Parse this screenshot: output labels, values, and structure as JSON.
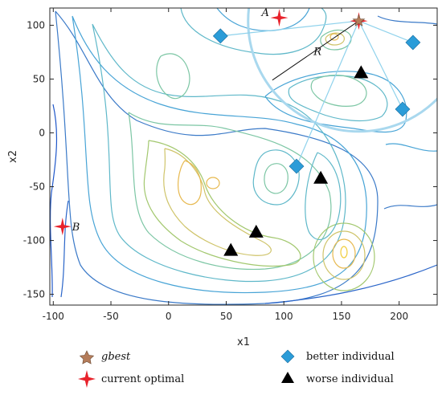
{
  "chart_data": {
    "type": "scatter",
    "xlabel": "x1",
    "ylabel": "x2",
    "xlim": [
      -103,
      233
    ],
    "ylim": [
      -160,
      116
    ],
    "xticks": [
      -100,
      -50,
      0,
      50,
      100,
      150,
      200
    ],
    "yticks": [
      100,
      50,
      0,
      -50,
      -100,
      -150
    ],
    "grid": false,
    "legend_placement": "below",
    "series": [
      {
        "name": "gbest",
        "points": [
          {
            "x": 165,
            "y": 104
          }
        ]
      },
      {
        "name": "current optimal",
        "points": [
          {
            "x": 96,
            "y": 107,
            "label": "A"
          },
          {
            "x": -92,
            "y": -87,
            "label": "B"
          }
        ]
      },
      {
        "name": "better individual",
        "points": [
          {
            "x": 45,
            "y": 90
          },
          {
            "x": 212,
            "y": 84
          },
          {
            "x": 203,
            "y": 22
          },
          {
            "x": 111,
            "y": -31
          }
        ]
      },
      {
        "name": "worse individual",
        "points": [
          {
            "x": 167,
            "y": 56
          },
          {
            "x": 132,
            "y": -42
          },
          {
            "x": 76,
            "y": -92
          },
          {
            "x": 54,
            "y": -109
          }
        ]
      }
    ],
    "annotations": [
      {
        "text": "A",
        "x": 96,
        "y": 107
      },
      {
        "text": "B",
        "x": -92,
        "y": -87
      },
      {
        "text": "R",
        "x": 130,
        "y": 68
      }
    ],
    "radius_line": {
      "from": [
        90,
        49
      ],
      "to": [
        165,
        104
      ],
      "label": "R"
    },
    "circle": {
      "center": [
        165,
        104
      ],
      "radius": 96
    },
    "links": [
      {
        "from": [
          165,
          104
        ],
        "to": [
          45,
          90
        ]
      },
      {
        "from": [
          165,
          104
        ],
        "to": [
          212,
          84
        ]
      },
      {
        "from": [
          165,
          104
        ],
        "to": [
          203,
          22
        ]
      },
      {
        "from": [
          165,
          104
        ],
        "to": [
          111,
          -31
        ]
      }
    ],
    "contour_colors": [
      "#1f57c9",
      "#3b7ac8",
      "#48a4d6",
      "#5fb8c9",
      "#7cc6a4",
      "#a3c86f",
      "#cfc46a",
      "#e7b94f",
      "#f0cc37"
    ]
  },
  "legend": {
    "gbest": "gbest",
    "current_optimal": "current optimal",
    "better": "better individual",
    "worse": "worse individual"
  },
  "colors": {
    "star_gbest": "#b47c5a",
    "star_optimal": "#e8222b",
    "diamond": "#2b9cd8",
    "triangle": "#000000",
    "circle": "#a9d8ee",
    "links": "#8fd2ec"
  }
}
